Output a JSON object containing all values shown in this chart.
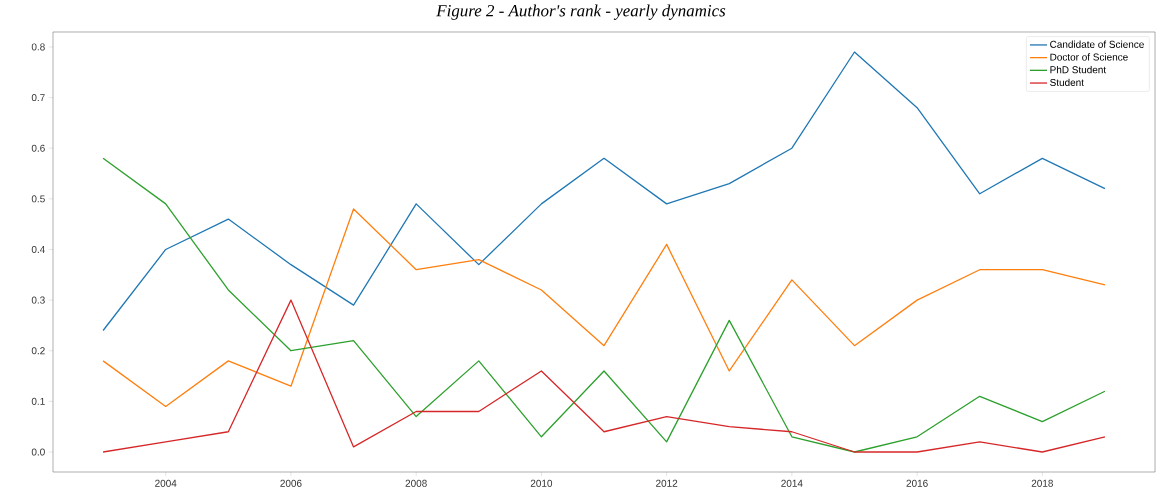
{
  "chart_data": {
    "type": "line",
    "title": "Figure 2 - Author's rank - yearly dynamics",
    "x": [
      2003,
      2004,
      2005,
      2006,
      2007,
      2008,
      2009,
      2010,
      2011,
      2012,
      2013,
      2014,
      2015,
      2016,
      2017,
      2018,
      2019
    ],
    "series": [
      {
        "name": "Candidate of Science",
        "color": "#1f77b4",
        "values": [
          0.24,
          0.4,
          0.46,
          0.37,
          0.29,
          0.49,
          0.37,
          0.49,
          0.58,
          0.49,
          0.53,
          0.6,
          0.79,
          0.68,
          0.51,
          0.58,
          0.52
        ]
      },
      {
        "name": "Doctor of Science",
        "color": "#ff7f0e",
        "values": [
          0.18,
          0.09,
          0.18,
          0.13,
          0.48,
          0.36,
          0.38,
          0.32,
          0.21,
          0.41,
          0.16,
          0.34,
          0.21,
          0.3,
          0.36,
          0.36,
          0.33
        ]
      },
      {
        "name": "PhD Student",
        "color": "#2ca02c",
        "values": [
          0.58,
          0.49,
          0.32,
          0.2,
          0.22,
          0.07,
          0.18,
          0.03,
          0.16,
          0.02,
          0.26,
          0.03,
          0.0,
          0.03,
          0.11,
          0.06,
          0.12
        ]
      },
      {
        "name": "Student",
        "color": "#d62728",
        "values": [
          0.0,
          0.02,
          0.04,
          0.3,
          0.01,
          0.08,
          0.08,
          0.16,
          0.04,
          0.07,
          0.05,
          0.04,
          0.0,
          0.0,
          0.02,
          0.0,
          0.03
        ]
      }
    ],
    "xlim": [
      2002.2,
      2019.8
    ],
    "ylim": [
      -0.0395,
      0.8295
    ],
    "xticks": [
      2004,
      2006,
      2008,
      2010,
      2012,
      2014,
      2016,
      2018
    ],
    "yticks": [
      {
        "value": 0,
        "label": "0.0"
      },
      {
        "value": 0.1,
        "label": "0.1"
      },
      {
        "value": 0.2,
        "label": "0.2"
      },
      {
        "value": 0.3,
        "label": "0.3"
      },
      {
        "value": 0.4,
        "label": "0.4"
      },
      {
        "value": 0.5,
        "label": "0.5"
      },
      {
        "value": 0.6,
        "label": "0.6"
      },
      {
        "value": 0.7,
        "label": "0.7"
      },
      {
        "value": 0.8,
        "label": "0.8"
      }
    ],
    "legend": "top right",
    "marker": "none",
    "line_style": "solid"
  }
}
